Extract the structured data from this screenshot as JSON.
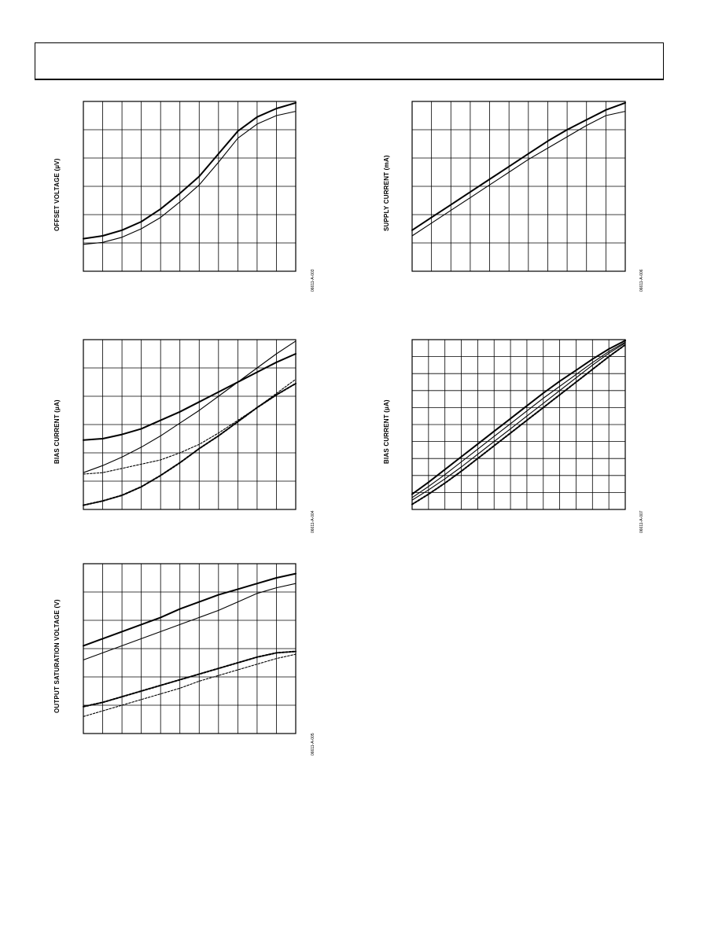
{
  "figures": [
    {
      "ylabel": "OFFSET VOLTAGE (µV)",
      "code": "06611-A-003"
    },
    {
      "ylabel": "SUPPLY CURRENT (mA)",
      "code": "06611-A-006"
    },
    {
      "ylabel": "BIAS CURRENT (µA)",
      "code": "06611-A-004"
    },
    {
      "ylabel": "BIAS CURRENT (µA)",
      "code": "06611-A-007"
    },
    {
      "ylabel": "OUTPUT SATURATION VOLTAGE (V)",
      "code": "06611-A-005"
    }
  ],
  "chart_data": [
    {
      "type": "line",
      "ylabel": "OFFSET VOLTAGE (µV)",
      "xlim": [
        0,
        11
      ],
      "ylim": [
        0,
        6
      ],
      "grid": true,
      "x": [
        0,
        1,
        2,
        3,
        4,
        5,
        6,
        7,
        8,
        9,
        10,
        11
      ],
      "series": [
        {
          "values": [
            1.15,
            1.25,
            1.45,
            1.75,
            2.2,
            2.75,
            3.35,
            4.15,
            4.95,
            5.45,
            5.75,
            5.95
          ],
          "weight": "heavy"
        },
        {
          "values": [
            0.95,
            1.02,
            1.2,
            1.5,
            1.9,
            2.45,
            3.05,
            3.85,
            4.7,
            5.2,
            5.5,
            5.65
          ],
          "weight": "light"
        }
      ]
    },
    {
      "type": "line",
      "ylabel": "SUPPLY CURRENT (mA)",
      "xlim": [
        0,
        11
      ],
      "ylim": [
        0,
        6
      ],
      "grid": true,
      "x": [
        0,
        1,
        2,
        3,
        4,
        5,
        6,
        7,
        8,
        9,
        10,
        11
      ],
      "series": [
        {
          "values": [
            1.45,
            1.9,
            2.35,
            2.8,
            3.25,
            3.7,
            4.15,
            4.6,
            5.0,
            5.35,
            5.7,
            5.95
          ],
          "weight": "heavy"
        },
        {
          "values": [
            1.25,
            1.7,
            2.15,
            2.6,
            3.05,
            3.5,
            3.95,
            4.35,
            4.75,
            5.15,
            5.5,
            5.65
          ],
          "weight": "light"
        }
      ]
    },
    {
      "type": "line",
      "ylabel": "BIAS CURRENT (µA)",
      "xlim": [
        0,
        11
      ],
      "ylim": [
        0,
        6
      ],
      "grid": true,
      "x": [
        0,
        1,
        2,
        3,
        4,
        5,
        6,
        7,
        8,
        9,
        10,
        11
      ],
      "series": [
        {
          "values": [
            2.45,
            2.5,
            2.65,
            2.85,
            3.15,
            3.45,
            3.8,
            4.15,
            4.5,
            4.85,
            5.2,
            5.5
          ],
          "weight": "heavy",
          "style": "solid"
        },
        {
          "values": [
            1.3,
            1.55,
            1.85,
            2.2,
            2.6,
            3.05,
            3.5,
            4.0,
            4.5,
            5.0,
            5.5,
            5.95
          ],
          "weight": "light",
          "style": "solid"
        },
        {
          "values": [
            1.25,
            1.3,
            1.45,
            1.6,
            1.75,
            2.0,
            2.3,
            2.7,
            3.15,
            3.6,
            4.1,
            4.6
          ],
          "weight": "light",
          "style": "dashed"
        },
        {
          "values": [
            0.15,
            0.3,
            0.5,
            0.8,
            1.2,
            1.65,
            2.15,
            2.6,
            3.1,
            3.6,
            4.05,
            4.45
          ],
          "weight": "heavy",
          "style": "dashed"
        }
      ]
    },
    {
      "type": "line",
      "ylabel": "BIAS CURRENT (µA)",
      "xlim": [
        0,
        13
      ],
      "ylim": [
        0,
        10
      ],
      "grid": true,
      "x": [
        0,
        1,
        2,
        3,
        4,
        5,
        6,
        7,
        8,
        9,
        10,
        11,
        12,
        13
      ],
      "series": [
        {
          "values": [
            0.9,
            1.6,
            2.35,
            3.1,
            3.85,
            4.6,
            5.35,
            6.1,
            6.85,
            7.55,
            8.2,
            8.85,
            9.45,
            9.95
          ],
          "weight": "heavy",
          "style": "solid"
        },
        {
          "values": [
            0.7,
            1.35,
            2.05,
            2.8,
            3.55,
            4.3,
            5.05,
            5.8,
            6.55,
            7.25,
            7.95,
            8.65,
            9.3,
            9.85
          ],
          "weight": "light",
          "style": "solid"
        },
        {
          "values": [
            0.55,
            1.15,
            1.8,
            2.5,
            3.25,
            4.0,
            4.75,
            5.5,
            6.25,
            7.0,
            7.75,
            8.5,
            9.2,
            9.8
          ],
          "weight": "light",
          "style": "solid"
        },
        {
          "values": [
            0.3,
            0.9,
            1.55,
            2.25,
            3.0,
            3.75,
            4.5,
            5.25,
            6.0,
            6.75,
            7.5,
            8.25,
            9.0,
            9.7
          ],
          "weight": "heavy",
          "style": "dashed"
        }
      ]
    },
    {
      "type": "line",
      "ylabel": "OUTPUT SATURATION VOLTAGE (V)",
      "xlim": [
        0,
        11
      ],
      "ylim": [
        0,
        6
      ],
      "grid": true,
      "x": [
        0,
        1,
        2,
        3,
        4,
        5,
        6,
        7,
        8,
        9,
        10,
        11
      ],
      "series": [
        {
          "values": [
            3.1,
            3.35,
            3.6,
            3.85,
            4.1,
            4.4,
            4.65,
            4.9,
            5.1,
            5.3,
            5.5,
            5.65
          ],
          "weight": "heavy",
          "style": "solid"
        },
        {
          "values": [
            2.6,
            2.85,
            3.1,
            3.35,
            3.6,
            3.85,
            4.1,
            4.35,
            4.65,
            4.95,
            5.15,
            5.3
          ],
          "weight": "light",
          "style": "solid"
        },
        {
          "values": [
            0.95,
            1.1,
            1.3,
            1.5,
            1.7,
            1.9,
            2.1,
            2.3,
            2.5,
            2.7,
            2.85,
            2.9
          ],
          "weight": "heavy",
          "style": "dashed"
        },
        {
          "values": [
            0.6,
            0.8,
            1.0,
            1.2,
            1.4,
            1.6,
            1.85,
            2.05,
            2.25,
            2.45,
            2.65,
            2.8
          ],
          "weight": "light",
          "style": "dashed"
        }
      ]
    }
  ]
}
